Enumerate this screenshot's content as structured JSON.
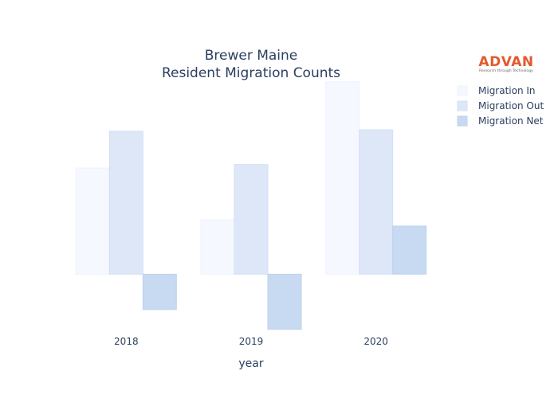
{
  "chart_data": {
    "type": "bar",
    "title": [
      "Brewer Maine",
      "Resident Migration Counts"
    ],
    "xlabel": "year",
    "ylabel": "",
    "categories": [
      "2018",
      "2019",
      "2020"
    ],
    "series": [
      {
        "name": "Migration In",
        "values": [
          1500,
          770,
          2720
        ],
        "color": "#f5f8fe",
        "stroke": "#eef2fb"
      },
      {
        "name": "Migration Out",
        "values": [
          2020,
          1550,
          2040
        ],
        "color": "#dde7f8",
        "stroke": "#d3dff5"
      },
      {
        "name": "Migration Net",
        "values": [
          -500,
          -780,
          680
        ],
        "color": "#c7daf2",
        "stroke": "#bdd2ee"
      }
    ],
    "ylim": [
      -850,
      2750
    ],
    "grid": false,
    "legend_position": "top-right"
  },
  "logo": {
    "brand": "ADVAN",
    "tagline": "Research through Technology",
    "brand_color": "#e25a2c"
  }
}
